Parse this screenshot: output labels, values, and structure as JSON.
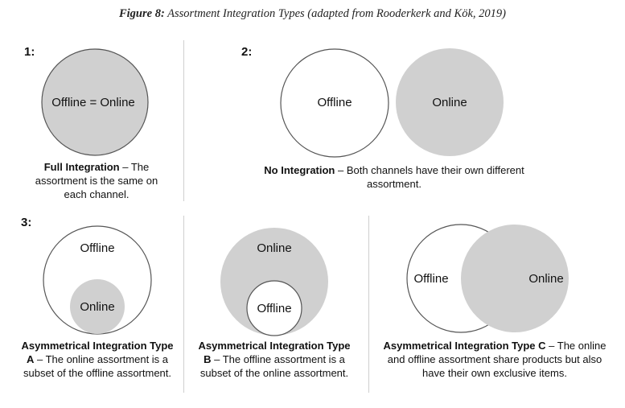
{
  "title": {
    "label": "Figure 8:",
    "text": "Assortment Integration Types (adapted from Rooderkerk and Kök, 2019)"
  },
  "panel1": {
    "number": "1:",
    "circle_label": "Offline = Online",
    "caption_bold": "Full Integration",
    "caption_rest": " – The assortment is the same on each channel."
  },
  "panel2": {
    "number": "2:",
    "offline_label": "Offline",
    "online_label": "Online",
    "caption_bold": "No Integration",
    "caption_rest": " – Both channels have their own different assortment."
  },
  "panel3": {
    "number": "3:",
    "typeA": {
      "outer_label": "Offline",
      "inner_label": "Online",
      "caption_bold": "Asymmetrical Integration Type A",
      "caption_rest": " – The online assortment is a subset of the offline assortment."
    },
    "typeB": {
      "outer_label": "Online",
      "inner_label": "Offline",
      "caption_bold": "Asymmetrical Integration Type B",
      "caption_rest": " – The offline assortment is a subset of the online assortment."
    },
    "typeC": {
      "offline_label": "Offline",
      "online_label": "Online",
      "caption_bold": "Asymmetrical Integration Type C",
      "caption_rest": " – The online and offline assortment share products but also have their own exclusive items."
    }
  },
  "colors": {
    "fill_gray": "#d0d0d0",
    "stroke": "#555555",
    "divider": "#cfcfcf"
  }
}
